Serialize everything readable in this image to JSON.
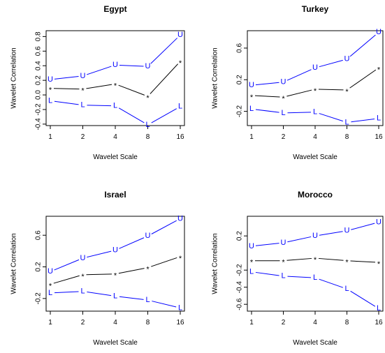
{
  "chart_data": [
    {
      "type": "line",
      "title": "Egypt",
      "xlabel": "Wavelet Scale",
      "ylabel": "Wavelet Correlation",
      "x_ticks": [
        "1",
        "2",
        "4",
        "8",
        "16"
      ],
      "y_ticks": [
        "-0.4",
        "-0.2",
        "0.0",
        "0.2",
        "0.4",
        "0.6",
        "0.8"
      ],
      "y_tick_values": [
        -0.4,
        -0.2,
        0.0,
        0.2,
        0.4,
        0.6,
        0.8
      ],
      "ylim": [
        -0.42,
        0.88
      ],
      "series": [
        {
          "name": "U",
          "color": "#0000ff",
          "values": [
            0.21,
            0.26,
            0.41,
            0.39,
            0.82
          ]
        },
        {
          "name": "*",
          "color": "#000000",
          "values": [
            0.09,
            0.08,
            0.15,
            -0.02,
            0.46
          ]
        },
        {
          "name": "L",
          "color": "#0000ff",
          "values": [
            -0.08,
            -0.14,
            -0.15,
            -0.41,
            -0.16
          ]
        }
      ]
    },
    {
      "type": "line",
      "title": "Turkey",
      "xlabel": "Wavelet Scale",
      "ylabel": "Wavelet Correlation",
      "x_ticks": [
        "1",
        "2",
        "4",
        "8",
        "16"
      ],
      "y_ticks": [
        "-0.2",
        "0.2",
        "0.6"
      ],
      "y_tick_values": [
        -0.2,
        0.2,
        0.6
      ],
      "ylim": [
        -0.38,
        0.82
      ],
      "series": [
        {
          "name": "U",
          "color": "#0000ff",
          "values": [
            0.13,
            0.17,
            0.35,
            0.46,
            0.8
          ]
        },
        {
          "name": "*",
          "color": "#000000",
          "values": [
            0.0,
            -0.02,
            0.08,
            0.07,
            0.35
          ]
        },
        {
          "name": "L",
          "color": "#0000ff",
          "values": [
            -0.17,
            -0.22,
            -0.21,
            -0.34,
            -0.29
          ]
        }
      ]
    },
    {
      "type": "line",
      "title": "Israel",
      "xlabel": "Wavelet Scale",
      "ylabel": "Wavelet Correlation",
      "x_ticks": [
        "1",
        "2",
        "4",
        "8",
        "16"
      ],
      "y_ticks": [
        "-0.2",
        "0.2",
        "0.6"
      ],
      "y_tick_values": [
        -0.2,
        0.2,
        0.6
      ],
      "ylim": [
        -0.36,
        0.84
      ],
      "series": [
        {
          "name": "U",
          "color": "#0000ff",
          "values": [
            0.14,
            0.31,
            0.41,
            0.59,
            0.81
          ]
        },
        {
          "name": "*",
          "color": "#000000",
          "values": [
            -0.02,
            0.1,
            0.11,
            0.19,
            0.33
          ]
        },
        {
          "name": "L",
          "color": "#0000ff",
          "values": [
            -0.13,
            -0.11,
            -0.17,
            -0.22,
            -0.32
          ]
        }
      ]
    },
    {
      "type": "line",
      "title": "Morocco",
      "xlabel": "Wavelet Scale",
      "ylabel": "Wavelet Correlation",
      "x_ticks": [
        "1",
        "2",
        "4",
        "8",
        "16"
      ],
      "y_ticks": [
        "-0.6",
        "-0.4",
        "-0.2",
        "0.2"
      ],
      "y_tick_values": [
        -0.6,
        -0.4,
        -0.2,
        0.2
      ],
      "ylim": [
        -0.68,
        0.43
      ],
      "series": [
        {
          "name": "U",
          "color": "#0000ff",
          "values": [
            0.08,
            0.12,
            0.2,
            0.26,
            0.36
          ]
        },
        {
          "name": "*",
          "color": "#000000",
          "values": [
            -0.09,
            -0.09,
            -0.06,
            -0.09,
            -0.11
          ]
        },
        {
          "name": "L",
          "color": "#0000ff",
          "values": [
            -0.22,
            -0.27,
            -0.29,
            -0.42,
            -0.65
          ]
        }
      ]
    }
  ]
}
